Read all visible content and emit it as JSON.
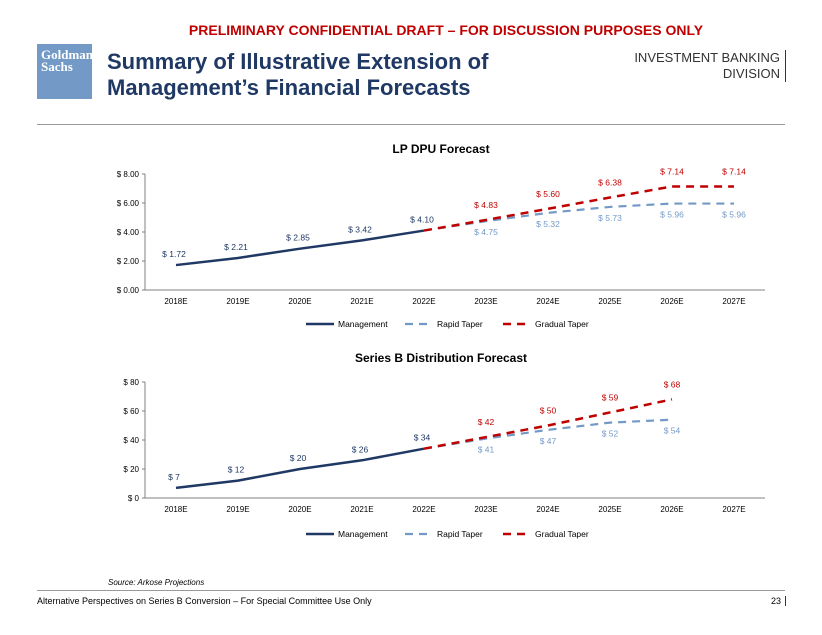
{
  "header": {
    "banner": "PRELIMINARY CONFIDENTIAL DRAFT – FOR DISCUSSION PURPOSES ONLY",
    "logo_line1": "Goldman",
    "logo_line2": "Sachs",
    "title_line1": "Summary of Illustrative Extension of",
    "title_line2": "Management’s Financial Forecasts",
    "division_line1": "INVESTMENT BANKING",
    "division_line2": "DIVISION"
  },
  "colors": {
    "management": "#1f3864",
    "rapid": "#7399c6",
    "gradual": "#c00000"
  },
  "chart_data": [
    {
      "id": "dpu",
      "type": "line",
      "title": "LP DPU Forecast",
      "categories": [
        "2018E",
        "2019E",
        "2020E",
        "2021E",
        "2022E",
        "2023E",
        "2024E",
        "2025E",
        "2026E",
        "2027E"
      ],
      "ylim": [
        0,
        8
      ],
      "yticks": [
        0,
        2,
        4,
        6,
        8
      ],
      "ytick_labels": [
        "$ 0.00",
        "$ 2.00",
        "$ 4.00",
        "$ 6.00",
        "$ 8.00"
      ],
      "legend": [
        "Management",
        "Rapid Taper",
        "Gradual Taper"
      ],
      "series": [
        {
          "name": "Management",
          "key": "management",
          "values": [
            1.72,
            2.21,
            2.85,
            3.42,
            4.1,
            null,
            null,
            null,
            null,
            null
          ],
          "labels": [
            "$ 1.72",
            "$ 2.21",
            "$ 2.85",
            "$ 3.42",
            "$ 4.10",
            null,
            null,
            null,
            null,
            null
          ]
        },
        {
          "name": "Rapid Taper",
          "key": "rapid",
          "values": [
            null,
            null,
            null,
            null,
            4.1,
            4.75,
            5.32,
            5.73,
            5.96,
            5.96
          ],
          "labels": [
            null,
            null,
            null,
            null,
            null,
            "$ 4.75",
            "$ 5.32",
            "$ 5.73",
            "$ 5.96",
            "$ 5.96"
          ]
        },
        {
          "name": "Gradual Taper",
          "key": "gradual",
          "values": [
            null,
            null,
            null,
            null,
            4.1,
            4.83,
            5.6,
            6.38,
            7.14,
            7.14
          ],
          "labels": [
            null,
            null,
            null,
            null,
            null,
            "$ 4.83",
            "$ 5.60",
            "$ 6.38",
            "$ 7.14",
            "$ 7.14"
          ]
        }
      ]
    },
    {
      "id": "seriesb",
      "type": "line",
      "title": "Series B Distribution Forecast",
      "categories": [
        "2018E",
        "2019E",
        "2020E",
        "2021E",
        "2022E",
        "2023E",
        "2024E",
        "2025E",
        "2026E",
        "2027E"
      ],
      "ylim": [
        0,
        80
      ],
      "yticks": [
        0,
        20,
        40,
        60,
        80
      ],
      "ytick_labels": [
        "$ 0",
        "$ 20",
        "$ 40",
        "$ 60",
        "$ 80"
      ],
      "legend": [
        "Management",
        "Rapid Taper",
        "Gradual Taper"
      ],
      "series": [
        {
          "name": "Management",
          "key": "management",
          "values": [
            7,
            12,
            20,
            26,
            34,
            null,
            null,
            null,
            null,
            null
          ],
          "labels": [
            "$ 7",
            "$ 12",
            "$ 20",
            "$ 26",
            "$ 34",
            null,
            null,
            null,
            null,
            null
          ]
        },
        {
          "name": "Rapid Taper",
          "key": "rapid",
          "values": [
            null,
            null,
            null,
            null,
            34,
            41,
            47,
            52,
            54,
            null
          ],
          "labels": [
            null,
            null,
            null,
            null,
            null,
            "$ 41",
            "$ 47",
            "$ 52",
            "$ 54",
            null
          ]
        },
        {
          "name": "Gradual Taper",
          "key": "gradual",
          "values": [
            null,
            null,
            null,
            null,
            34,
            42,
            50,
            59,
            68,
            null
          ],
          "labels": [
            null,
            null,
            null,
            null,
            null,
            "$ 42",
            "$ 50",
            "$ 59",
            "$ 68",
            null
          ]
        }
      ]
    }
  ],
  "footer": {
    "source": "Source: Arkose Projections",
    "text": "Alternative Perspectives on Series B Conversion – For Special Committee Use Only",
    "page": "23"
  }
}
